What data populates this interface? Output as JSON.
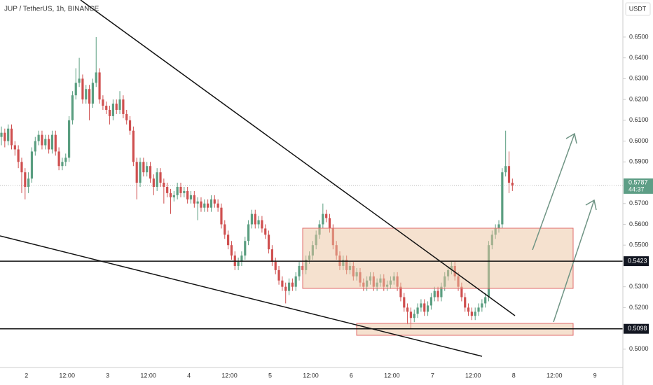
{
  "chart_data": {
    "type": "candlestick",
    "title": "JUP / TetherUS, 1h, BINANCE",
    "currency": "USDT",
    "up_color": "#5a9e80",
    "down_color": "#cf4f4f",
    "ylim": [
      0.4912,
      0.6678
    ],
    "yticks": [
      {
        "value": 0.5,
        "label": "0.5000"
      },
      {
        "value": 0.52,
        "label": "0.5200"
      },
      {
        "value": 0.53,
        "label": "0.5300"
      },
      {
        "value": 0.55,
        "label": "0.5500"
      },
      {
        "value": 0.56,
        "label": "0.5600"
      },
      {
        "value": 0.57,
        "label": "0.5700"
      },
      {
        "value": 0.59,
        "label": "0.5900"
      },
      {
        "value": 0.6,
        "label": "0.6000"
      },
      {
        "value": 0.61,
        "label": "0.6100"
      },
      {
        "value": 0.62,
        "label": "0.6200"
      },
      {
        "value": 0.63,
        "label": "0.6300"
      },
      {
        "value": 0.64,
        "label": "0.6400"
      },
      {
        "value": 0.65,
        "label": "0.6500"
      }
    ],
    "x_labels": [
      "2",
      "12:00",
      "3",
      "12:00",
      "4",
      "12:00",
      "5",
      "12:00",
      "6",
      "12:00",
      "7",
      "12:00",
      "8",
      "12:00",
      "9"
    ],
    "levels": [
      0.5423,
      0.5098
    ],
    "last_price": 0.5787,
    "countdown": "44:37",
    "candles": [
      [
        0.602,
        0.607,
        0.598,
        0.604
      ],
      [
        0.604,
        0.606,
        0.597,
        0.6
      ],
      [
        0.6,
        0.608,
        0.598,
        0.606
      ],
      [
        0.606,
        0.608,
        0.596,
        0.598
      ],
      [
        0.598,
        0.6,
        0.593,
        0.596
      ],
      [
        0.596,
        0.598,
        0.587,
        0.59
      ],
      [
        0.59,
        0.592,
        0.575,
        0.585
      ],
      [
        0.585,
        0.587,
        0.572,
        0.578
      ],
      [
        0.578,
        0.585,
        0.575,
        0.582
      ],
      [
        0.582,
        0.597,
        0.58,
        0.595
      ],
      [
        0.595,
        0.602,
        0.593,
        0.6
      ],
      [
        0.6,
        0.605,
        0.598,
        0.603
      ],
      [
        0.603,
        0.605,
        0.596,
        0.598
      ],
      [
        0.598,
        0.603,
        0.596,
        0.601
      ],
      [
        0.601,
        0.603,
        0.594,
        0.596
      ],
      [
        0.596,
        0.605,
        0.594,
        0.603
      ],
      [
        0.603,
        0.605,
        0.593,
        0.595
      ],
      [
        0.595,
        0.597,
        0.586,
        0.588
      ],
      [
        0.588,
        0.592,
        0.586,
        0.59
      ],
      [
        0.59,
        0.594,
        0.588,
        0.592
      ],
      [
        0.592,
        0.612,
        0.59,
        0.61
      ],
      [
        0.61,
        0.624,
        0.608,
        0.622
      ],
      [
        0.622,
        0.635,
        0.62,
        0.628
      ],
      [
        0.628,
        0.64,
        0.626,
        0.63
      ],
      [
        0.63,
        0.632,
        0.618,
        0.62
      ],
      [
        0.62,
        0.627,
        0.618,
        0.625
      ],
      [
        0.625,
        0.627,
        0.61,
        0.618
      ],
      [
        0.618,
        0.63,
        0.616,
        0.628
      ],
      [
        0.628,
        0.65,
        0.626,
        0.633
      ],
      [
        0.633,
        0.635,
        0.618,
        0.62
      ],
      [
        0.62,
        0.622,
        0.615,
        0.617
      ],
      [
        0.617,
        0.619,
        0.613,
        0.615
      ],
      [
        0.615,
        0.617,
        0.608,
        0.612
      ],
      [
        0.612,
        0.62,
        0.61,
        0.618
      ],
      [
        0.618,
        0.62,
        0.613,
        0.615
      ],
      [
        0.615,
        0.624,
        0.613,
        0.62
      ],
      [
        0.62,
        0.622,
        0.611,
        0.613
      ],
      [
        0.613,
        0.615,
        0.608,
        0.61
      ],
      [
        0.61,
        0.612,
        0.603,
        0.605
      ],
      [
        0.605,
        0.607,
        0.588,
        0.59
      ],
      [
        0.59,
        0.592,
        0.572,
        0.58
      ],
      [
        0.58,
        0.592,
        0.578,
        0.59
      ],
      [
        0.59,
        0.592,
        0.583,
        0.585
      ],
      [
        0.585,
        0.59,
        0.583,
        0.588
      ],
      [
        0.588,
        0.59,
        0.58,
        0.582
      ],
      [
        0.582,
        0.584,
        0.574,
        0.578
      ],
      [
        0.578,
        0.587,
        0.576,
        0.585
      ],
      [
        0.585,
        0.587,
        0.578,
        0.58
      ],
      [
        0.58,
        0.582,
        0.57,
        0.578
      ],
      [
        0.578,
        0.58,
        0.573,
        0.575
      ],
      [
        0.575,
        0.577,
        0.565,
        0.573
      ],
      [
        0.573,
        0.576,
        0.571,
        0.574
      ],
      [
        0.574,
        0.58,
        0.572,
        0.578
      ],
      [
        0.578,
        0.58,
        0.573,
        0.575
      ],
      [
        0.575,
        0.578,
        0.573,
        0.576
      ],
      [
        0.576,
        0.578,
        0.57,
        0.572
      ],
      [
        0.572,
        0.576,
        0.57,
        0.574
      ],
      [
        0.574,
        0.576,
        0.568,
        0.57
      ],
      [
        0.57,
        0.573,
        0.562,
        0.571
      ],
      [
        0.571,
        0.573,
        0.566,
        0.568
      ],
      [
        0.568,
        0.572,
        0.566,
        0.57
      ],
      [
        0.57,
        0.572,
        0.566,
        0.568
      ],
      [
        0.568,
        0.574,
        0.566,
        0.572
      ],
      [
        0.572,
        0.574,
        0.568,
        0.57
      ],
      [
        0.57,
        0.572,
        0.566,
        0.568
      ],
      [
        0.568,
        0.57,
        0.558,
        0.56
      ],
      [
        0.56,
        0.562,
        0.553,
        0.555
      ],
      [
        0.555,
        0.557,
        0.548,
        0.55
      ],
      [
        0.55,
        0.552,
        0.543,
        0.545
      ],
      [
        0.545,
        0.547,
        0.538,
        0.54
      ],
      [
        0.54,
        0.544,
        0.538,
        0.542
      ],
      [
        0.542,
        0.547,
        0.54,
        0.545
      ],
      [
        0.545,
        0.554,
        0.543,
        0.552
      ],
      [
        0.552,
        0.562,
        0.55,
        0.56
      ],
      [
        0.56,
        0.567,
        0.558,
        0.565
      ],
      [
        0.565,
        0.567,
        0.558,
        0.56
      ],
      [
        0.56,
        0.564,
        0.558,
        0.562
      ],
      [
        0.562,
        0.564,
        0.556,
        0.558
      ],
      [
        0.558,
        0.56,
        0.553,
        0.555
      ],
      [
        0.555,
        0.557,
        0.546,
        0.548
      ],
      [
        0.548,
        0.55,
        0.54,
        0.542
      ],
      [
        0.542,
        0.544,
        0.536,
        0.538
      ],
      [
        0.538,
        0.54,
        0.531,
        0.533
      ],
      [
        0.533,
        0.535,
        0.528,
        0.53
      ],
      [
        0.53,
        0.532,
        0.522,
        0.528
      ],
      [
        0.528,
        0.534,
        0.526,
        0.532
      ],
      [
        0.532,
        0.534,
        0.528,
        0.53
      ],
      [
        0.53,
        0.537,
        0.528,
        0.535
      ],
      [
        0.535,
        0.542,
        0.533,
        0.54
      ],
      [
        0.54,
        0.542,
        0.536,
        0.538
      ],
      [
        0.538,
        0.545,
        0.536,
        0.543
      ],
      [
        0.543,
        0.547,
        0.541,
        0.545
      ],
      [
        0.545,
        0.552,
        0.543,
        0.55
      ],
      [
        0.55,
        0.557,
        0.548,
        0.555
      ],
      [
        0.555,
        0.562,
        0.553,
        0.56
      ],
      [
        0.56,
        0.57,
        0.558,
        0.565
      ],
      [
        0.565,
        0.567,
        0.561,
        0.563
      ],
      [
        0.563,
        0.565,
        0.556,
        0.558
      ],
      [
        0.558,
        0.56,
        0.548,
        0.55
      ],
      [
        0.55,
        0.552,
        0.543,
        0.545
      ],
      [
        0.545,
        0.547,
        0.538,
        0.54
      ],
      [
        0.54,
        0.545,
        0.538,
        0.543
      ],
      [
        0.543,
        0.545,
        0.536,
        0.538
      ],
      [
        0.538,
        0.542,
        0.536,
        0.54
      ],
      [
        0.54,
        0.542,
        0.533,
        0.535
      ],
      [
        0.535,
        0.539,
        0.533,
        0.537
      ],
      [
        0.537,
        0.539,
        0.53,
        0.532
      ],
      [
        0.532,
        0.534,
        0.528,
        0.53
      ],
      [
        0.53,
        0.535,
        0.528,
        0.533
      ],
      [
        0.533,
        0.537,
        0.531,
        0.535
      ],
      [
        0.535,
        0.537,
        0.528,
        0.53
      ],
      [
        0.53,
        0.534,
        0.528,
        0.532
      ],
      [
        0.532,
        0.536,
        0.53,
        0.534
      ],
      [
        0.534,
        0.536,
        0.528,
        0.53
      ],
      [
        0.53,
        0.533,
        0.528,
        0.531
      ],
      [
        0.531,
        0.535,
        0.529,
        0.533
      ],
      [
        0.533,
        0.537,
        0.531,
        0.535
      ],
      [
        0.535,
        0.537,
        0.528,
        0.53
      ],
      [
        0.53,
        0.532,
        0.523,
        0.525
      ],
      [
        0.525,
        0.527,
        0.518,
        0.52
      ],
      [
        0.52,
        0.522,
        0.512,
        0.518
      ],
      [
        0.518,
        0.52,
        0.51,
        0.515
      ],
      [
        0.515,
        0.519,
        0.513,
        0.517
      ],
      [
        0.517,
        0.522,
        0.515,
        0.52
      ],
      [
        0.52,
        0.524,
        0.518,
        0.522
      ],
      [
        0.522,
        0.524,
        0.516,
        0.518
      ],
      [
        0.518,
        0.523,
        0.516,
        0.521
      ],
      [
        0.521,
        0.527,
        0.519,
        0.525
      ],
      [
        0.525,
        0.53,
        0.523,
        0.528
      ],
      [
        0.528,
        0.53,
        0.523,
        0.525
      ],
      [
        0.525,
        0.532,
        0.523,
        0.53
      ],
      [
        0.53,
        0.537,
        0.528,
        0.535
      ],
      [
        0.535,
        0.54,
        0.533,
        0.538
      ],
      [
        0.538,
        0.542,
        0.536,
        0.54
      ],
      [
        0.54,
        0.542,
        0.533,
        0.535
      ],
      [
        0.535,
        0.537,
        0.528,
        0.53
      ],
      [
        0.53,
        0.532,
        0.523,
        0.525
      ],
      [
        0.525,
        0.527,
        0.518,
        0.52
      ],
      [
        0.52,
        0.522,
        0.516,
        0.518
      ],
      [
        0.518,
        0.52,
        0.514,
        0.516
      ],
      [
        0.516,
        0.52,
        0.514,
        0.518
      ],
      [
        0.518,
        0.522,
        0.516,
        0.52
      ],
      [
        0.52,
        0.524,
        0.518,
        0.522
      ],
      [
        0.522,
        0.527,
        0.52,
        0.525
      ],
      [
        0.525,
        0.552,
        0.523,
        0.55
      ],
      [
        0.55,
        0.557,
        0.548,
        0.555
      ],
      [
        0.555,
        0.56,
        0.553,
        0.558
      ],
      [
        0.558,
        0.562,
        0.556,
        0.56
      ],
      [
        0.56,
        0.587,
        0.558,
        0.585
      ],
      [
        0.585,
        0.605,
        0.583,
        0.588
      ],
      [
        0.588,
        0.595,
        0.575,
        0.58
      ],
      [
        0.58,
        0.582,
        0.576,
        0.5787
      ]
    ]
  }
}
